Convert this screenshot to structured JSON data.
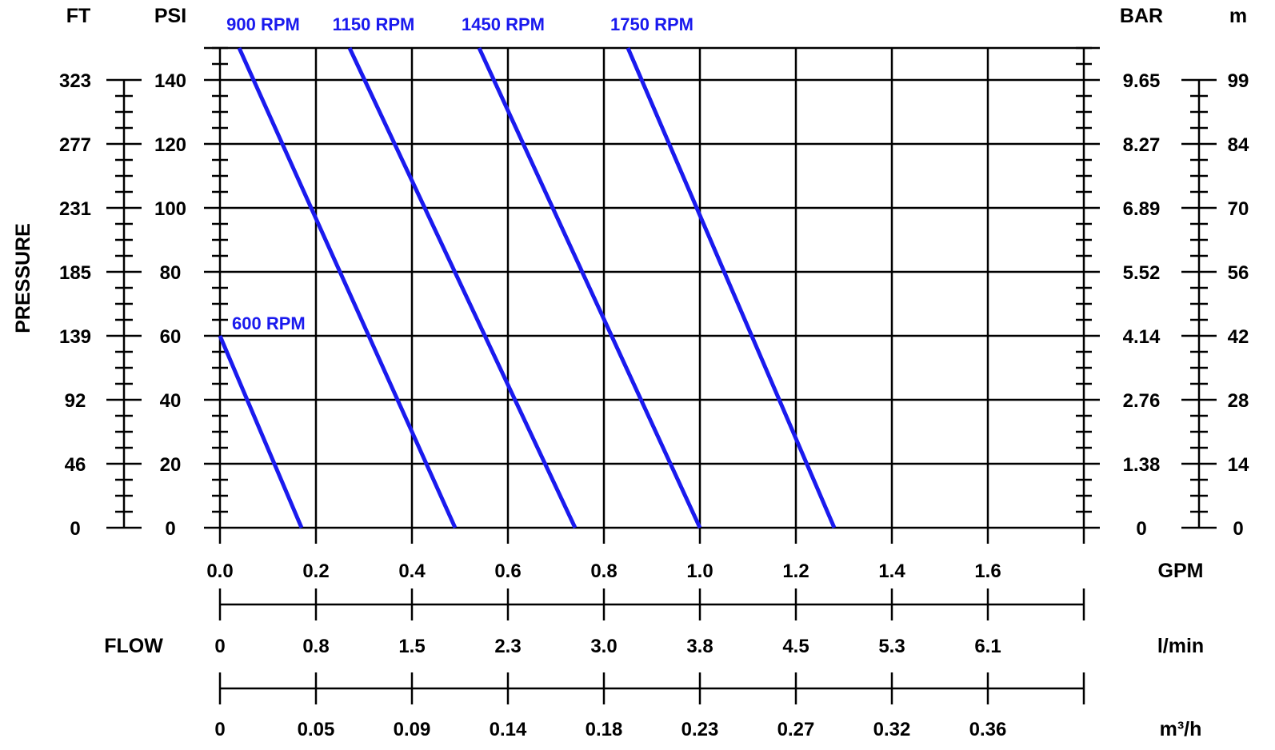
{
  "chart_data": {
    "type": "line",
    "title": "",
    "ylabel": "PRESSURE",
    "flow_label": "FLOW",
    "colors": {
      "curve": "#1a1aee",
      "grid": "#000000"
    },
    "x_gpm": {
      "unit": "GPM",
      "range": [
        0,
        1.8
      ],
      "ticks": [
        0,
        0.2,
        0.4,
        0.6,
        0.8,
        1.0,
        1.2,
        1.4,
        1.6
      ],
      "labels": [
        "0.0",
        "0.2",
        "0.4",
        "0.6",
        "0.8",
        "1.0",
        "1.2",
        "1.4",
        "1.6"
      ]
    },
    "x_lmin": {
      "unit": "l/min",
      "labels": [
        "0",
        "0.8",
        "1.5",
        "2.3",
        "3.0",
        "3.8",
        "4.5",
        "5.3",
        "6.1"
      ]
    },
    "x_m3h": {
      "unit": "m³/h",
      "labels": [
        "0",
        "0.05",
        "0.09",
        "0.14",
        "0.18",
        "0.23",
        "0.27",
        "0.32",
        "0.36"
      ]
    },
    "y_psi": {
      "unit": "PSI",
      "range": [
        0,
        150
      ],
      "ticks": [
        0,
        20,
        40,
        60,
        80,
        100,
        120,
        140
      ],
      "labels": [
        "0",
        "20",
        "40",
        "60",
        "80",
        "100",
        "120",
        "140"
      ],
      "minor_step": 5
    },
    "y_ft": {
      "unit": "FT",
      "labels": [
        "0",
        "46",
        "92",
        "139",
        "185",
        "231",
        "277",
        "323"
      ]
    },
    "y_bar": {
      "unit": "BAR",
      "labels": [
        "0",
        "1.38",
        "2.76",
        "4.14",
        "5.52",
        "6.89",
        "8.27",
        "9.65"
      ]
    },
    "y_m": {
      "unit": "m",
      "labels": [
        "0",
        "14",
        "28",
        "42",
        "56",
        "70",
        "84",
        "99"
      ]
    },
    "series": [
      {
        "name": "600 RPM",
        "x": [
          0.0,
          0.17
        ],
        "y": [
          60,
          0
        ]
      },
      {
        "name": "900 RPM",
        "x": [
          0.04,
          0.49
        ],
        "y": [
          150,
          0
        ]
      },
      {
        "name": "1150 RPM",
        "x": [
          0.27,
          0.74
        ],
        "y": [
          150,
          0
        ]
      },
      {
        "name": "1450 RPM",
        "x": [
          0.54,
          1.0
        ],
        "y": [
          150,
          0
        ]
      },
      {
        "name": "1750 RPM",
        "x": [
          0.85,
          1.28
        ],
        "y": [
          150,
          0
        ]
      }
    ]
  }
}
